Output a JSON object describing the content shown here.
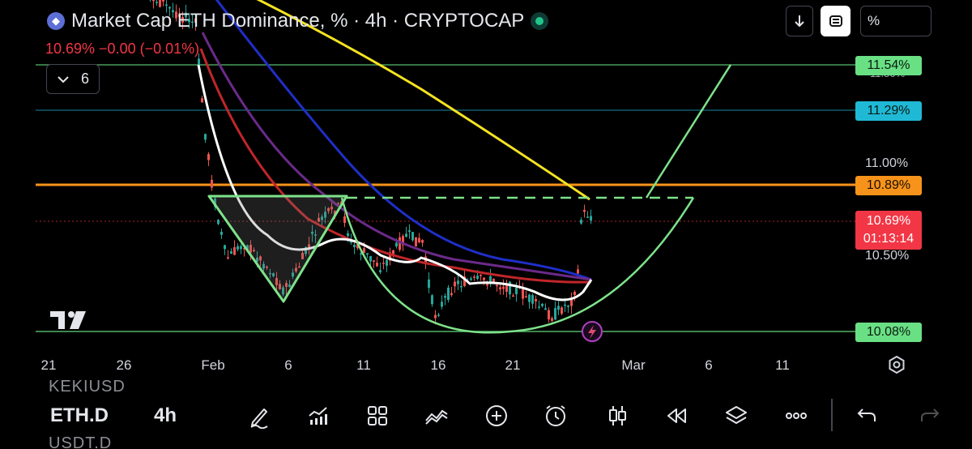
{
  "header": {
    "title": "Market Cap ETH Dominance, % · 4h · CRYPTOCAP",
    "quote": "10.69%  −0.00 (−0.01%)",
    "indicator_count": "6"
  },
  "toolbar_top": {
    "percent_label": "%"
  },
  "price_axis": {
    "labels": [
      {
        "text": "11.54%",
        "color": "#69e084"
      },
      {
        "text": "11.29%",
        "color": "#1fb9d6"
      },
      {
        "text": "10.89%",
        "color": "#f7931a"
      },
      {
        "text": "10.08%",
        "color": "#69e084"
      }
    ],
    "current_price": "10.69%",
    "countdown": "01:13:14",
    "ticks": [
      "11.00%",
      "10.50%"
    ],
    "faded_tick": "11.50%"
  },
  "time_axis": {
    "labels": [
      "21",
      "26",
      "Feb",
      "6",
      "11",
      "16",
      "21",
      "Mar",
      "6",
      "11"
    ]
  },
  "bottom_bar": {
    "symbol": "ETH.D",
    "timeframe": "4h",
    "ghost_above": "KEKIUSD",
    "ghost_below": "USDT.D",
    "tools": [
      "draw-icon",
      "indicators-icon",
      "templates-icon",
      "compare-icon",
      "add-icon",
      "alert-icon",
      "chart-type-icon",
      "replay-icon",
      "layers-icon",
      "more-icon",
      "undo-icon"
    ]
  },
  "colors": {
    "background": "#000000",
    "up": "#26a69a",
    "down": "#ef5350",
    "ma_white": "#ffffff",
    "ma_yellow": "#f4e320",
    "ma_blue": "#1f2fc8",
    "ma_purple": "#6b2a8a",
    "ma_red": "#c0262a",
    "drawing_green": "#7ee28a",
    "line_orange": "#f7931a",
    "line_cyan": "#1fb9d6",
    "current_red": "#f23645"
  },
  "chart_data": {
    "type": "candlestick",
    "symbol": "ETH.D",
    "timeframe": "4h",
    "levels": [
      11.54,
      11.29,
      10.89,
      10.08
    ],
    "current": 10.69,
    "y_ticks": [
      11.0,
      10.5
    ]
  }
}
